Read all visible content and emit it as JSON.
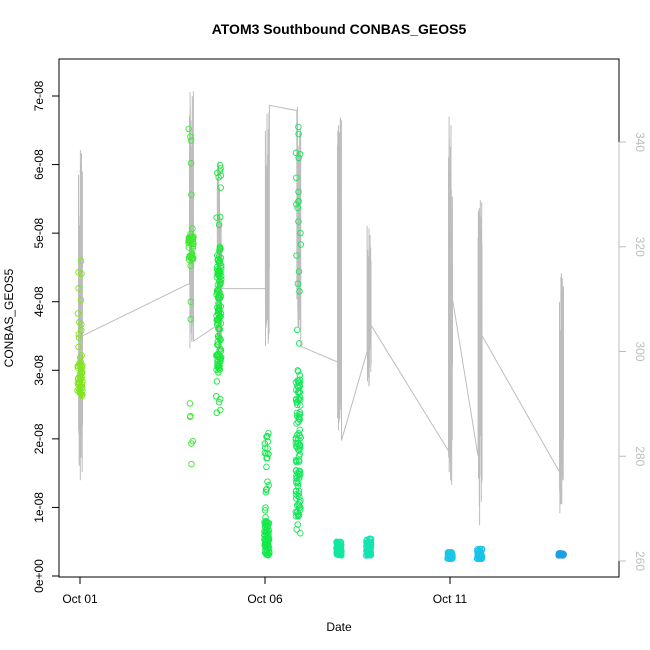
{
  "chart_data": {
    "type": "scatter",
    "title": "ATOM3 Southbound CONBAS_GEOS5",
    "xlabel": "Date",
    "ylabel": "CONBAS_GEOS5",
    "x_ticks": [
      {
        "day": 1,
        "label": "Oct 01"
      },
      {
        "day": 6,
        "label": "Oct 06"
      },
      {
        "day": 11,
        "label": "Oct 11"
      }
    ],
    "xlim_days": [
      1,
      15
    ],
    "ylim": [
      0,
      7.5e-08
    ],
    "y_ticks": [
      {
        "value": 0,
        "label": "0e+00"
      },
      {
        "value": 1e-08,
        "label": "1e-08"
      },
      {
        "value": 2e-08,
        "label": "2e-08"
      },
      {
        "value": 3e-08,
        "label": "3e-08"
      },
      {
        "value": 4e-08,
        "label": "4e-08"
      },
      {
        "value": 5e-08,
        "label": "5e-08"
      },
      {
        "value": 6e-08,
        "label": "6e-08"
      },
      {
        "value": 7e-08,
        "label": "7e-08"
      }
    ],
    "y2lim": [
      260,
      350
    ],
    "y2_ticks": [
      {
        "value": 260,
        "label": "260"
      },
      {
        "value": 280,
        "label": "280"
      },
      {
        "value": 300,
        "label": "300"
      },
      {
        "value": 320,
        "label": "320"
      },
      {
        "value": 340,
        "label": "340"
      }
    ],
    "point_groups": [
      {
        "day": 1.0,
        "ymin": 2.6e-08,
        "ymax": 4.7e-08,
        "dense_min": 2.6e-08,
        "dense_max": 3.2e-08,
        "color": "#7fe61a",
        "n": 55
      },
      {
        "day": 4.0,
        "ymin": 1.1e-08,
        "ymax": 7.4e-08,
        "dense_min": 4.6e-08,
        "dense_max": 5e-08,
        "color": "#3ee831",
        "n": 50
      },
      {
        "day": 4.75,
        "ymin": 2.2e-08,
        "ymax": 6e-08,
        "dense_min": 3e-08,
        "dense_max": 4.8e-08,
        "color": "#19e83a",
        "n": 130
      },
      {
        "day": 6.05,
        "ymin": 3e-09,
        "ymax": 2.1e-08,
        "dense_min": 3e-09,
        "dense_max": 8e-09,
        "color": "#14e84a",
        "n": 90
      },
      {
        "day": 6.9,
        "ymin": 5e-09,
        "ymax": 6.7e-08,
        "dense_min": 8e-09,
        "dense_max": 3e-08,
        "color": "#14e85a",
        "n": 130
      },
      {
        "day": 8.0,
        "ymin": 3e-09,
        "ymax": 5e-09,
        "dense_min": 3e-09,
        "dense_max": 5e-09,
        "color": "#14e6a0",
        "n": 70
      },
      {
        "day": 8.8,
        "ymin": 3e-09,
        "ymax": 5.5e-09,
        "dense_min": 3e-09,
        "dense_max": 5.5e-09,
        "color": "#14e3b0",
        "n": 70
      },
      {
        "day": 11.0,
        "ymin": 2.5e-09,
        "ymax": 3.5e-09,
        "dense_min": 2.5e-09,
        "dense_max": 3.5e-09,
        "color": "#19c8e6",
        "n": 50
      },
      {
        "day": 11.8,
        "ymin": 2.5e-09,
        "ymax": 4e-09,
        "dense_min": 2.5e-09,
        "dense_max": 4e-09,
        "color": "#19c3e8",
        "n": 50
      },
      {
        "day": 14.0,
        "ymin": 3e-09,
        "ymax": 3.3e-09,
        "dense_min": 3e-09,
        "dense_max": 3.3e-09,
        "color": "#1e9ee8",
        "n": 45
      }
    ],
    "secondary_line": {
      "color": "#bdbdbd",
      "segments": [
        {
          "day": 1.0,
          "min": 275,
          "max": 340,
          "start": 303,
          "end": 303
        },
        {
          "day": 4.0,
          "min": 300,
          "max": 350,
          "start": 313,
          "end": 302
        },
        {
          "day": 4.75,
          "min": 295,
          "max": 337,
          "start": 305,
          "end": 312
        },
        {
          "day": 6.05,
          "min": 300,
          "max": 347,
          "start": 312,
          "end": 347
        },
        {
          "day": 6.9,
          "min": 300,
          "max": 347,
          "start": 346,
          "end": 301
        },
        {
          "day": 8.0,
          "min": 284,
          "max": 346,
          "start": 298,
          "end": 283
        },
        {
          "day": 8.8,
          "min": 292,
          "max": 328,
          "start": 300,
          "end": 305
        },
        {
          "day": 11.0,
          "min": 274,
          "max": 345,
          "start": 281,
          "end": 310
        },
        {
          "day": 11.8,
          "min": 266,
          "max": 329,
          "start": 280,
          "end": 303
        },
        {
          "day": 14.0,
          "min": 268,
          "max": 315,
          "start": 277,
          "end": 312
        }
      ]
    }
  }
}
